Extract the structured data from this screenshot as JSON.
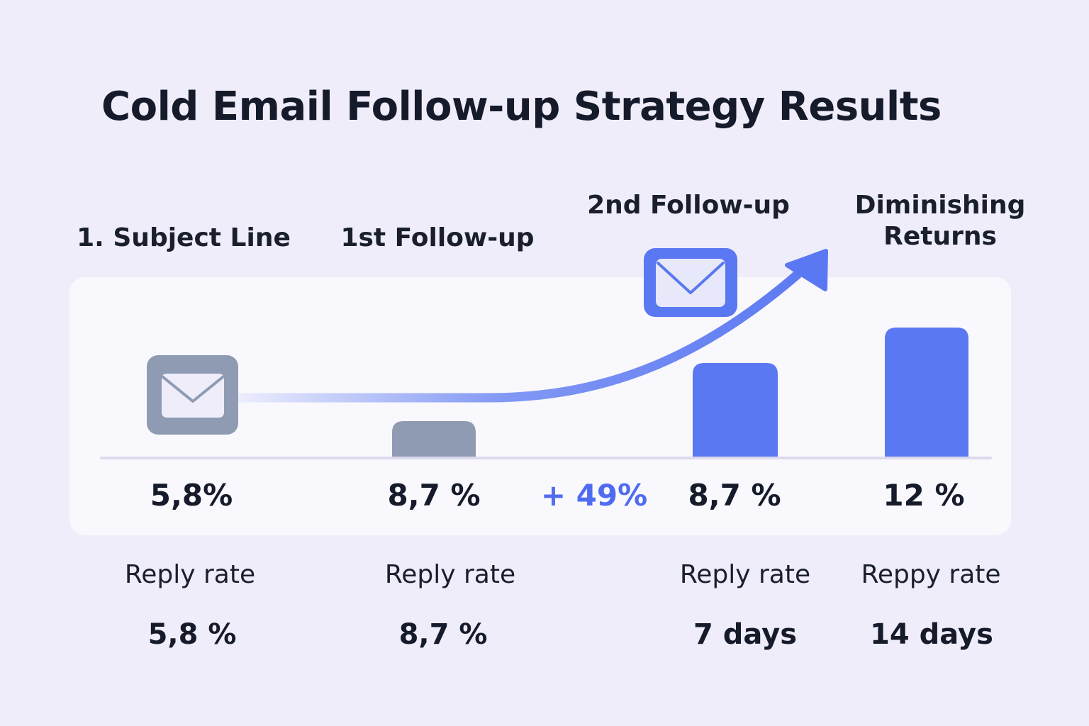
{
  "title": "Cold Email Follow-up Strategy Results",
  "stages": [
    {
      "label": "1. Subject Line",
      "value_label": "5,8%",
      "metric_label": "Reply rate",
      "metric_value": "5,8 %"
    },
    {
      "label": "1st Follow-up",
      "value_label": "8,7 %",
      "metric_label": "Reply rate",
      "metric_value": "8,7 %"
    },
    {
      "label": "2nd Follow-up",
      "value_label": "8,7 %",
      "metric_label": "Reply rate",
      "metric_value": "7 days"
    },
    {
      "label": "Diminishing\nReturns",
      "value_label": "12 %",
      "metric_label": "Reppy rate",
      "metric_value": "14 days"
    }
  ],
  "change_label": "+ 49%",
  "colors": {
    "gray": "#8e9bb3",
    "blue": "#5a78f2",
    "accent_text": "#4f6cf0"
  },
  "icons": [
    "envelope-icon",
    "trend-arrow-icon"
  ],
  "chart_data": {
    "type": "bar",
    "categories": [
      "1st Follow-up",
      "2nd Follow-up",
      "Diminishing Returns"
    ],
    "values": [
      8.7,
      8.7,
      12
    ],
    "title": "Cold Email Follow-up Strategy Results",
    "xlabel": "",
    "ylabel": "",
    "unit": "%",
    "grid": false
  }
}
